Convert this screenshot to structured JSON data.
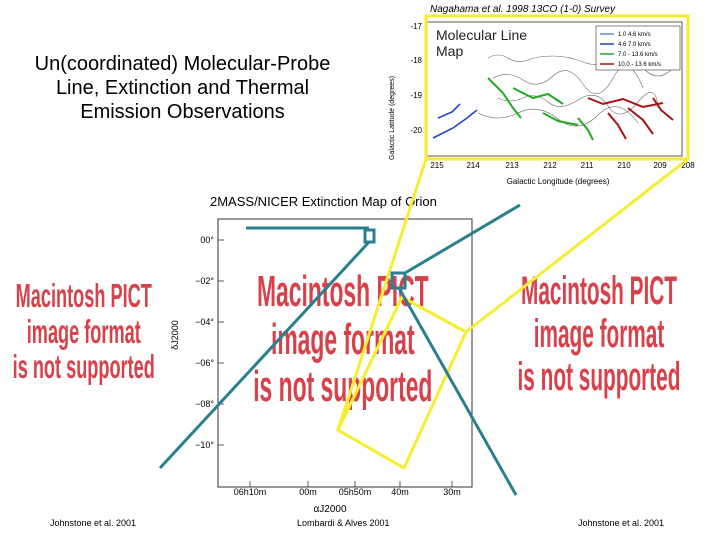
{
  "title": "Un(coordinated) Molecular-Probe Line, Extinction and Thermal Emission Observations",
  "co_map": {
    "citation": "Nagahama et al. 1998 13CO (1-0) Survey",
    "label": "Molecular Line Map",
    "y_axis_label": "Galactic Latitude (degrees)",
    "y_ticks": [
      "-17",
      "-18",
      "-19",
      "-20"
    ],
    "x_axis_label": "Galactic Longitude (degrees)",
    "x_ticks": [
      "215",
      "214",
      "213",
      "212",
      "211",
      "210",
      "209",
      "208"
    ],
    "legend": [
      {
        "label": "1.0  4.6 km/s",
        "color": "#2244cc"
      },
      {
        "label": "4.6  7.0 km/s",
        "color": "#2244cc"
      },
      {
        "label": "7.0 - 13.6 km/s",
        "color": "#22aa22"
      },
      {
        "label": "10.0 - 13.6 km/s",
        "color": "#aa1111"
      }
    ]
  },
  "extinction_map": {
    "title": "2MASS/NICER Extinction Map of Orion",
    "y_axis_label": "δJ2000",
    "y_ticks": [
      "00°",
      "−02°",
      "−04°",
      "−06°",
      "−08°",
      "−10°"
    ],
    "x_axis_label": "αJ2000",
    "x_ticks": [
      "06h10m",
      "00m",
      "05h50m",
      "40m",
      "30m"
    ]
  },
  "placeholder": {
    "line1": "Macintosh PICT",
    "line2": "image format",
    "line3": "is not supported"
  },
  "citations": {
    "left": "Johnstone et al. 2001",
    "center": "Lombardi & Alves 2001",
    "right": "Johnstone et al. 2001"
  },
  "colors": {
    "yellow": "#f5ee30",
    "teal": "#2a7f8f",
    "placeholder_red": "#d9414a"
  }
}
